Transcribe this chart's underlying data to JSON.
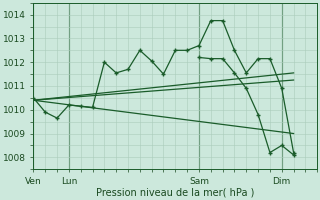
{
  "background_color": "#cce8dc",
  "grid_color": "#aaccbb",
  "line_color": "#1a5c2a",
  "text_color": "#1a4a20",
  "ylim": [
    1007.5,
    1014.5
  ],
  "yticks": [
    1008,
    1009,
    1010,
    1011,
    1012,
    1013,
    1014
  ],
  "xlabel": "Pression niveau de la mer( hPa )",
  "xtick_labels": [
    "Ven",
    "Lun",
    "Sam",
    "Dim"
  ],
  "xtick_positions": [
    0,
    3,
    14,
    21
  ],
  "xlim": [
    0,
    24
  ],
  "vlines": [
    0,
    3,
    14,
    21
  ],
  "series_main": {
    "x": [
      0,
      1,
      2,
      3,
      4,
      5,
      6,
      7,
      8,
      9,
      10,
      11,
      12,
      13,
      14,
      15,
      16,
      17,
      18,
      19,
      20,
      21,
      22
    ],
    "y": [
      1010.5,
      1009.9,
      1009.65,
      1010.2,
      1010.15,
      1010.1,
      1012.0,
      1011.55,
      1011.7,
      1012.5,
      1012.05,
      1011.5,
      1012.5,
      1012.5,
      1012.7,
      1013.75,
      1013.75,
      1012.5,
      1011.55,
      1012.15,
      1012.15,
      1010.9,
      1008.2
    ]
  },
  "trend1": {
    "x": [
      0,
      22
    ],
    "y": [
      1010.4,
      1011.55
    ]
  },
  "trend2": {
    "x": [
      0,
      22
    ],
    "y": [
      1010.4,
      1011.25
    ]
  },
  "trend3": {
    "x": [
      0,
      22
    ],
    "y": [
      1010.4,
      1009.0
    ]
  },
  "end_segment": {
    "x": [
      14,
      15,
      16,
      17,
      18,
      19,
      20,
      21,
      22
    ],
    "y": [
      1012.2,
      1012.15,
      1012.15,
      1011.55,
      1010.9,
      1009.8,
      1008.2,
      1008.5,
      1008.1
    ]
  }
}
